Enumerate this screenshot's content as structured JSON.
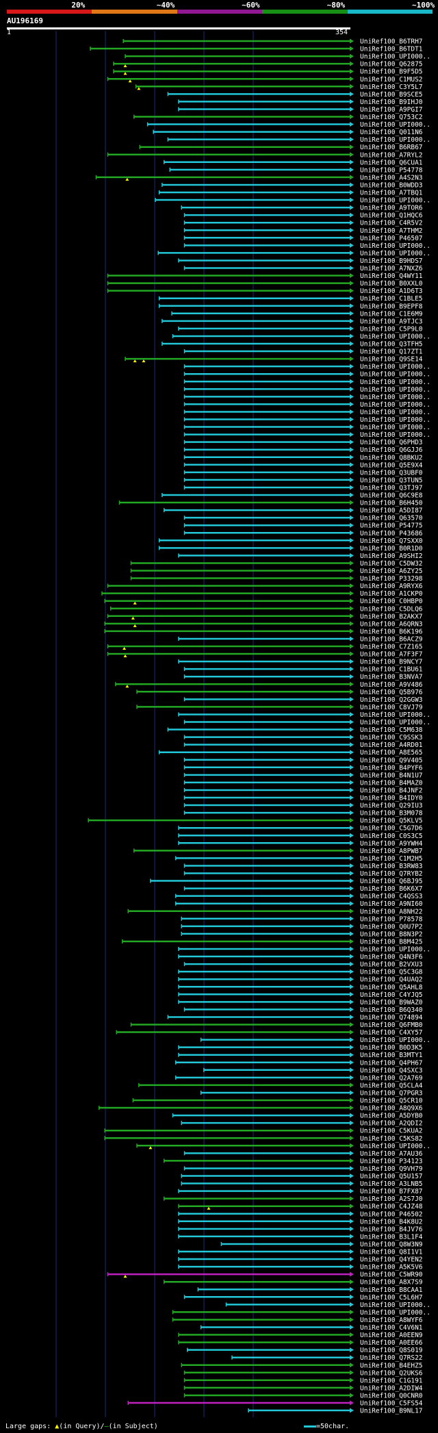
{
  "header": {
    "query_id": "AU196169",
    "query_start": "1",
    "query_end": "354",
    "legend": [
      {
        "label": "20%",
        "color": "#d81818"
      },
      {
        "label": "~40%",
        "color": "#e07818"
      },
      {
        "label": "~60%",
        "color": "#901890"
      },
      {
        "label": "~80%",
        "color": "#189018"
      },
      {
        "label": "~100%",
        "color": "#18b8c8"
      }
    ]
  },
  "footer": {
    "gaps_label": "Large gaps:",
    "query_gap": "(in Query)/",
    "subject_gap": "(in Subject)",
    "scale_label": "=50char."
  },
  "chart_data": {
    "type": "alignment",
    "query_length": 354,
    "hits": [
      {
        "id": "UniRef100_B6TRH7",
        "start": 120,
        "cls": "g"
      },
      {
        "id": "UniRef100_B6TDT1",
        "start": 86,
        "cls": "g"
      },
      {
        "id": "UniRef100_UPI000..",
        "start": 122,
        "cls": "g"
      },
      {
        "id": "UniRef100_Q62875",
        "start": 110,
        "cls": "g",
        "mark": [
          122
        ]
      },
      {
        "id": "UniRef100_B9F5D5",
        "start": 110,
        "cls": "g",
        "mark": [
          122
        ]
      },
      {
        "id": "UniRef100_C1MUS2",
        "start": 104,
        "cls": "g",
        "mark": [
          127
        ]
      },
      {
        "id": "UniRef100_C3Y5L7",
        "start": 133,
        "cls": "g",
        "mark": [
          136
        ]
      },
      {
        "id": "UniRef100_B9SCE5",
        "start": 166,
        "cls": "c"
      },
      {
        "id": "UniRef100_B9IHJ0",
        "start": 177,
        "cls": "c"
      },
      {
        "id": "UniRef100_A9PGI7",
        "start": 177,
        "cls": "c"
      },
      {
        "id": "UniRef100_Q753C2",
        "start": 131,
        "cls": "g"
      },
      {
        "id": "UniRef100_UPI000..",
        "start": 145,
        "cls": "c"
      },
      {
        "id": "UniRef100_Q011N6",
        "start": 151,
        "cls": "c"
      },
      {
        "id": "UniRef100_UPI000..",
        "start": 166,
        "cls": "c"
      },
      {
        "id": "UniRef100_B6RB67",
        "start": 137,
        "cls": "g"
      },
      {
        "id": "UniRef100_A7RYL2",
        "start": 104,
        "cls": "g"
      },
      {
        "id": "UniRef100_Q6CUA1",
        "start": 162,
        "cls": "c"
      },
      {
        "id": "UniRef100_P54778",
        "start": 168,
        "cls": "c"
      },
      {
        "id": "UniRef100_A4S2N3",
        "start": 92,
        "cls": "g",
        "mark": [
          124
        ]
      },
      {
        "id": "UniRef100_B0WDD3",
        "start": 160,
        "cls": "c"
      },
      {
        "id": "UniRef100_A7TBQ1",
        "start": 157,
        "cls": "c"
      },
      {
        "id": "UniRef100_UPI000..",
        "start": 153,
        "cls": "c"
      },
      {
        "id": "UniRef100_A9TOR6",
        "start": 180,
        "cls": "c"
      },
      {
        "id": "UniRef100_Q1HQC6",
        "start": 183,
        "cls": "c"
      },
      {
        "id": "UniRef100_C4R5V2",
        "start": 183,
        "cls": "c"
      },
      {
        "id": "UniRef100_A7THM2",
        "start": 183,
        "cls": "c"
      },
      {
        "id": "UniRef100_P46507",
        "start": 183,
        "cls": "c"
      },
      {
        "id": "UniRef100_UPI000..",
        "start": 183,
        "cls": "c"
      },
      {
        "id": "UniRef100_UPI000..",
        "start": 156,
        "cls": "c"
      },
      {
        "id": "UniRef100_B9HDS7",
        "start": 177,
        "cls": "c"
      },
      {
        "id": "UniRef100_A7NXZ6",
        "start": 183,
        "cls": "c"
      },
      {
        "id": "UniRef100_Q4WY11",
        "start": 104,
        "cls": "g"
      },
      {
        "id": "UniRef100_B0XXL0",
        "start": 104,
        "cls": "g"
      },
      {
        "id": "UniRef100_A1D6T3",
        "start": 104,
        "cls": "g"
      },
      {
        "id": "UniRef100_C1BLE5",
        "start": 157,
        "cls": "c"
      },
      {
        "id": "UniRef100_B9EPF8",
        "start": 157,
        "cls": "c"
      },
      {
        "id": "UniRef100_C1E6M9",
        "start": 170,
        "cls": "c"
      },
      {
        "id": "UniRef100_A9TJC3",
        "start": 160,
        "cls": "c"
      },
      {
        "id": "UniRef100_C5P9L0",
        "start": 177,
        "cls": "c"
      },
      {
        "id": "UniRef100_UPI000..",
        "start": 171,
        "cls": "c"
      },
      {
        "id": "UniRef100_Q3TFH5",
        "start": 160,
        "cls": "c"
      },
      {
        "id": "UniRef100_Q17ZT1",
        "start": 183,
        "cls": "c"
      },
      {
        "id": "UniRef100_Q9SE14",
        "start": 122,
        "cls": "g",
        "mark": [
          132,
          141
        ]
      },
      {
        "id": "UniRef100_UPI000..",
        "start": 183,
        "cls": "c"
      },
      {
        "id": "UniRef100_UPI000..",
        "start": 183,
        "cls": "c"
      },
      {
        "id": "UniRef100_UPI000..",
        "start": 183,
        "cls": "c"
      },
      {
        "id": "UniRef100_UPI000..",
        "start": 183,
        "cls": "c"
      },
      {
        "id": "UniRef100_UPI000..",
        "start": 183,
        "cls": "c"
      },
      {
        "id": "UniRef100_UPI000..",
        "start": 183,
        "cls": "c"
      },
      {
        "id": "UniRef100_UPI000..",
        "start": 183,
        "cls": "c"
      },
      {
        "id": "UniRef100_UPI000..",
        "start": 183,
        "cls": "c"
      },
      {
        "id": "UniRef100_UPI000..",
        "start": 183,
        "cls": "c"
      },
      {
        "id": "UniRef100_UPI000..",
        "start": 183,
        "cls": "c"
      },
      {
        "id": "UniRef100_Q6PHD3",
        "start": 183,
        "cls": "c"
      },
      {
        "id": "UniRef100_Q6GJJ6",
        "start": 183,
        "cls": "c"
      },
      {
        "id": "UniRef100_Q8BKU2",
        "start": 183,
        "cls": "c"
      },
      {
        "id": "UniRef100_Q5E9X4",
        "start": 183,
        "cls": "c"
      },
      {
        "id": "UniRef100_Q3UBF0",
        "start": 183,
        "cls": "c"
      },
      {
        "id": "UniRef100_Q3TUN5",
        "start": 183,
        "cls": "c"
      },
      {
        "id": "UniRef100_Q3TJ97",
        "start": 183,
        "cls": "c"
      },
      {
        "id": "UniRef100_Q6C9E8",
        "start": 160,
        "cls": "c"
      },
      {
        "id": "UniRef100_B6H450",
        "start": 116,
        "cls": "g"
      },
      {
        "id": "UniRef100_A5DI87",
        "start": 162,
        "cls": "c"
      },
      {
        "id": "UniRef100_Q63570",
        "start": 183,
        "cls": "c"
      },
      {
        "id": "UniRef100_P54775",
        "start": 183,
        "cls": "c"
      },
      {
        "id": "UniRef100_P43686",
        "start": 183,
        "cls": "c"
      },
      {
        "id": "UniRef100_Q7SXX0",
        "start": 157,
        "cls": "c"
      },
      {
        "id": "UniRef100_B0R1D0",
        "start": 157,
        "cls": "c"
      },
      {
        "id": "UniRef100_A9SHI2",
        "start": 177,
        "cls": "c"
      },
      {
        "id": "UniRef100_C5DW32",
        "start": 128,
        "cls": "g"
      },
      {
        "id": "UniRef100_A6ZY25",
        "start": 128,
        "cls": "g"
      },
      {
        "id": "UniRef100_P33298",
        "start": 128,
        "cls": "g"
      },
      {
        "id": "UniRef100_A9RYX6",
        "start": 104,
        "cls": "g"
      },
      {
        "id": "UniRef100_A1CKP0",
        "start": 98,
        "cls": "g"
      },
      {
        "id": "UniRef100_C0HBP0",
        "start": 101,
        "cls": "g",
        "mark": [
          132
        ]
      },
      {
        "id": "UniRef100_C5DLQ6",
        "start": 107,
        "cls": "g"
      },
      {
        "id": "UniRef100_B2AKX7",
        "start": 104,
        "cls": "g",
        "mark": [
          130
        ]
      },
      {
        "id": "UniRef100_A6QRN3",
        "start": 101,
        "cls": "g",
        "mark": [
          132
        ]
      },
      {
        "id": "UniRef100_B6K196",
        "start": 101,
        "cls": "g"
      },
      {
        "id": "UniRef100_B6ACZ9",
        "start": 177,
        "cls": "c"
      },
      {
        "id": "UniRef100_C7Z165",
        "start": 104,
        "cls": "g",
        "mark": [
          121
        ]
      },
      {
        "id": "UniRef100_A7F3F7",
        "start": 104,
        "cls": "g",
        "mark": [
          122
        ]
      },
      {
        "id": "UniRef100_B9NCY7",
        "start": 177,
        "cls": "c"
      },
      {
        "id": "UniRef100_C1BU61",
        "start": 183,
        "cls": "c"
      },
      {
        "id": "UniRef100_B3NVA7",
        "start": 183,
        "cls": "c"
      },
      {
        "id": "UniRef100_A9V486",
        "start": 112,
        "cls": "g",
        "mark": [
          124
        ]
      },
      {
        "id": "UniRef100_Q5B976",
        "start": 134,
        "cls": "g"
      },
      {
        "id": "UniRef100_Q2GGW3",
        "start": 183,
        "cls": "c"
      },
      {
        "id": "UniRef100_C8VJ79",
        "start": 134,
        "cls": "g"
      },
      {
        "id": "UniRef100_UPI000..",
        "start": 177,
        "cls": "c"
      },
      {
        "id": "UniRef100_UPI000..",
        "start": 183,
        "cls": "c"
      },
      {
        "id": "UniRef100_C5M638",
        "start": 166,
        "cls": "c"
      },
      {
        "id": "UniRef100_C9SSK3",
        "start": 183,
        "cls": "c"
      },
      {
        "id": "UniRef100_A4RD01",
        "start": 183,
        "cls": "c"
      },
      {
        "id": "UniRef100_A8E565",
        "start": 157,
        "cls": "c"
      },
      {
        "id": "UniRef100_Q9V405",
        "start": 183,
        "cls": "c"
      },
      {
        "id": "UniRef100_B4PYF6",
        "start": 183,
        "cls": "c"
      },
      {
        "id": "UniRef100_B4N1U7",
        "start": 183,
        "cls": "c"
      },
      {
        "id": "UniRef100_B4MAZ0",
        "start": 183,
        "cls": "c"
      },
      {
        "id": "UniRef100_B4JNF2",
        "start": 183,
        "cls": "c"
      },
      {
        "id": "UniRef100_B4IDY0",
        "start": 183,
        "cls": "c"
      },
      {
        "id": "UniRef100_Q29IU3",
        "start": 183,
        "cls": "c"
      },
      {
        "id": "UniRef100_B3M078",
        "start": 183,
        "cls": "c"
      },
      {
        "id": "UniRef100_Q5KLV5",
        "start": 84,
        "cls": "g"
      },
      {
        "id": "UniRef100_C5G7D6",
        "start": 177,
        "cls": "c"
      },
      {
        "id": "UniRef100_C0S3C5",
        "start": 177,
        "cls": "c"
      },
      {
        "id": "UniRef100_A9YWH4",
        "start": 177,
        "cls": "c"
      },
      {
        "id": "UniRef100_A8PWB7",
        "start": 131,
        "cls": "g"
      },
      {
        "id": "UniRef100_C1M2H5",
        "start": 174,
        "cls": "c"
      },
      {
        "id": "UniRef100_B3RW83",
        "start": 183,
        "cls": "c"
      },
      {
        "id": "UniRef100_Q7RYB2",
        "start": 183,
        "cls": "c"
      },
      {
        "id": "UniRef100_Q6BJ95",
        "start": 148,
        "cls": "c"
      },
      {
        "id": "UniRef100_B6K6X7",
        "start": 183,
        "cls": "c"
      },
      {
        "id": "UniRef100_C4QSS3",
        "start": 174,
        "cls": "c"
      },
      {
        "id": "UniRef100_A9NI60",
        "start": 174,
        "cls": "c"
      },
      {
        "id": "UniRef100_A8NH22",
        "start": 125,
        "cls": "g"
      },
      {
        "id": "UniRef100_P78578",
        "start": 180,
        "cls": "c"
      },
      {
        "id": "UniRef100_Q0U7P2",
        "start": 180,
        "cls": "c"
      },
      {
        "id": "UniRef100_B8N3P2",
        "start": 180,
        "cls": "c"
      },
      {
        "id": "UniRef100_B8M425",
        "start": 119,
        "cls": "g"
      },
      {
        "id": "UniRef100_UPI000..",
        "start": 177,
        "cls": "c"
      },
      {
        "id": "UniRef100_Q4N3F6",
        "start": 177,
        "cls": "c"
      },
      {
        "id": "UniRef100_B2VXU3",
        "start": 183,
        "cls": "c"
      },
      {
        "id": "UniRef100_Q5C3G8",
        "start": 177,
        "cls": "c"
      },
      {
        "id": "UniRef100_Q4UAQ2",
        "start": 177,
        "cls": "c"
      },
      {
        "id": "UniRef100_Q5AHL8",
        "start": 177,
        "cls": "c"
      },
      {
        "id": "UniRef100_C4YJQ5",
        "start": 177,
        "cls": "c"
      },
      {
        "id": "UniRef100_B9WAZ0",
        "start": 177,
        "cls": "c"
      },
      {
        "id": "UniRef100_B6Q340",
        "start": 183,
        "cls": "c"
      },
      {
        "id": "UniRef100_Q74894",
        "start": 166,
        "cls": "c"
      },
      {
        "id": "UniRef100_Q6FMB0",
        "start": 128,
        "cls": "g"
      },
      {
        "id": "UniRef100_C4XY57",
        "start": 113,
        "cls": "g"
      },
      {
        "id": "UniRef100_UPI000..",
        "start": 200,
        "cls": "c"
      },
      {
        "id": "UniRef100_B0D3K5",
        "start": 177,
        "cls": "c"
      },
      {
        "id": "UniRef100_B3MTY1",
        "start": 177,
        "cls": "c"
      },
      {
        "id": "UniRef100_Q4PH67",
        "start": 174,
        "cls": "c"
      },
      {
        "id": "UniRef100_Q4SXC3",
        "start": 203,
        "cls": "c"
      },
      {
        "id": "UniRef100_Q2A769",
        "start": 174,
        "cls": "c"
      },
      {
        "id": "UniRef100_Q5CLA4",
        "start": 136,
        "cls": "g"
      },
      {
        "id": "UniRef100_Q7PGR3",
        "start": 200,
        "cls": "c"
      },
      {
        "id": "UniRef100_Q5CR10",
        "start": 130,
        "cls": "g"
      },
      {
        "id": "UniRef100_A8Q9X6",
        "start": 95,
        "cls": "g"
      },
      {
        "id": "UniRef100_A5DYB0",
        "start": 171,
        "cls": "c"
      },
      {
        "id": "UniRef100_A2QDI2",
        "start": 180,
        "cls": "c"
      },
      {
        "id": "UniRef100_C5KUA2",
        "start": 101,
        "cls": "g"
      },
      {
        "id": "UniRef100_C5KS82",
        "start": 101,
        "cls": "g"
      },
      {
        "id": "UniRef100_UPI000..",
        "start": 134,
        "cls": "g",
        "mark": [
          148
        ]
      },
      {
        "id": "UniRef100_A7AU36",
        "start": 183,
        "cls": "c"
      },
      {
        "id": "UniRef100_P34123",
        "start": 162,
        "cls": "g"
      },
      {
        "id": "UniRef100_Q9VH79",
        "start": 183,
        "cls": "c"
      },
      {
        "id": "UniRef100_Q5U157",
        "start": 180,
        "cls": "c"
      },
      {
        "id": "UniRef100_A3LNB5",
        "start": 180,
        "cls": "c"
      },
      {
        "id": "UniRef100_B7FX87",
        "start": 177,
        "cls": "c"
      },
      {
        "id": "UniRef100_A2S7J0",
        "start": 162,
        "cls": "g"
      },
      {
        "id": "UniRef100_C4JZ48",
        "start": 177,
        "cls": "g",
        "mark": [
          208
        ]
      },
      {
        "id": "UniRef100_P46502",
        "start": 177,
        "cls": "c"
      },
      {
        "id": "UniRef100_B4K8U2",
        "start": 177,
        "cls": "c"
      },
      {
        "id": "UniRef100_B4JV76",
        "start": 177,
        "cls": "c"
      },
      {
        "id": "UniRef100_B3L1F4",
        "start": 177,
        "cls": "c"
      },
      {
        "id": "UniRef100_Q8W3N9",
        "start": 221,
        "cls": "c"
      },
      {
        "id": "UniRef100_Q8I1V1",
        "start": 177,
        "cls": "c"
      },
      {
        "id": "UniRef100_Q4YEN2",
        "start": 177,
        "cls": "c"
      },
      {
        "id": "UniRef100_A5K5V6",
        "start": 177,
        "cls": "c"
      },
      {
        "id": "UniRef100_C5WR90",
        "start": 104,
        "cls": "m",
        "mark": [
          122
        ]
      },
      {
        "id": "UniRef100_A8X7S9",
        "start": 162,
        "cls": "g"
      },
      {
        "id": "UniRef100_B8CAA1",
        "start": 197,
        "cls": "c"
      },
      {
        "id": "UniRef100_C5L6H7",
        "start": 183,
        "cls": "c"
      },
      {
        "id": "UniRef100_UPI000..",
        "start": 226,
        "cls": "c"
      },
      {
        "id": "UniRef100_UPI000..",
        "start": 171,
        "cls": "g"
      },
      {
        "id": "UniRef100_A8WYF6",
        "start": 171,
        "cls": "g"
      },
      {
        "id": "UniRef100_C4V6N1",
        "start": 200,
        "cls": "c"
      },
      {
        "id": "UniRef100_A0EEN9",
        "start": 177,
        "cls": "g"
      },
      {
        "id": "UniRef100_A0EE66",
        "start": 177,
        "cls": "g"
      },
      {
        "id": "UniRef100_Q8S019",
        "start": 186,
        "cls": "c"
      },
      {
        "id": "UniRef100_Q7RS22",
        "start": 232,
        "cls": "c"
      },
      {
        "id": "UniRef100_B4EHZ5",
        "start": 180,
        "cls": "g"
      },
      {
        "id": "UniRef100_Q2UKS6",
        "start": 183,
        "cls": "g"
      },
      {
        "id": "UniRef100_C1G191",
        "start": 183,
        "cls": "g"
      },
      {
        "id": "UniRef100_A2DIW4",
        "start": 183,
        "cls": "g"
      },
      {
        "id": "UniRef100_Q0CNR0",
        "start": 183,
        "cls": "g"
      },
      {
        "id": "UniRef100_C5FS54",
        "start": 125,
        "cls": "m"
      },
      {
        "id": "UniRef100_B9NL17",
        "start": 249,
        "cls": "c"
      }
    ]
  }
}
